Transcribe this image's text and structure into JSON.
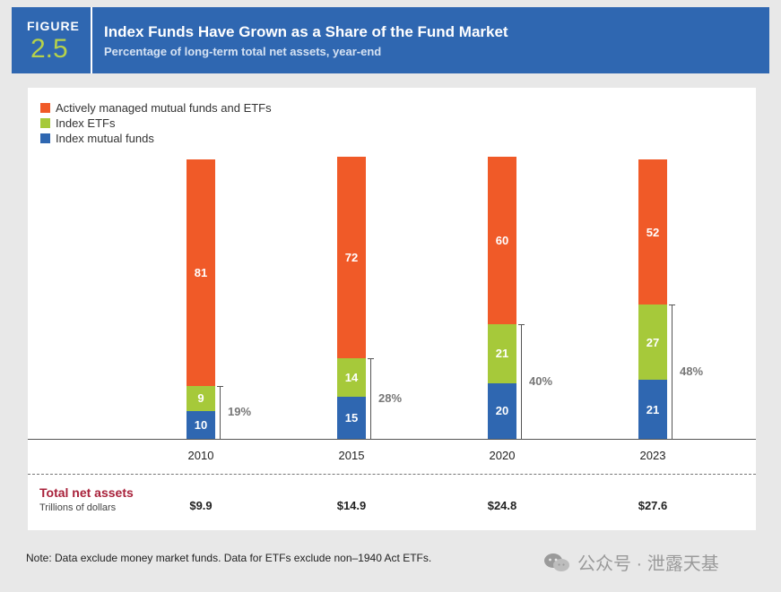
{
  "header": {
    "figure_label": "FIGURE",
    "figure_number": "2.5",
    "title": "Index Funds Have Grown as a Share of the Fund Market",
    "subtitle": "Percentage of long-term total net assets, year-end"
  },
  "colors": {
    "header_bg": "#2f67b1",
    "active": "#f05a28",
    "index_etf": "#a6c93a",
    "index_mf": "#2f67b1",
    "accent_red": "#a8213a"
  },
  "chart_data": {
    "type": "bar",
    "stacked": true,
    "categories": [
      "2010",
      "2015",
      "2020",
      "2023"
    ],
    "series": [
      {
        "name": "Index mutual funds",
        "values": [
          10,
          15,
          20,
          21
        ]
      },
      {
        "name": "Index ETFs",
        "values": [
          9,
          14,
          21,
          27
        ]
      },
      {
        "name": "Actively managed mutual funds and ETFs",
        "values": [
          81,
          72,
          60,
          52
        ]
      }
    ],
    "index_share_labels": [
      "19%",
      "28%",
      "40%",
      "48%"
    ],
    "legend_order": [
      "Actively managed mutual funds and ETFs",
      "Index ETFs",
      "Index mutual funds"
    ],
    "ylim": [
      0,
      100
    ],
    "legend_position": "top-left"
  },
  "total_net_assets": {
    "label": "Total net assets",
    "sublabel": "Trillions of dollars",
    "values": [
      "$9.9",
      "$14.9",
      "$24.8",
      "$27.6"
    ]
  },
  "note": "Note: Data exclude money market funds. Data for ETFs exclude non–1940 Act ETFs.",
  "watermark": "公众号 · 泄露天基"
}
